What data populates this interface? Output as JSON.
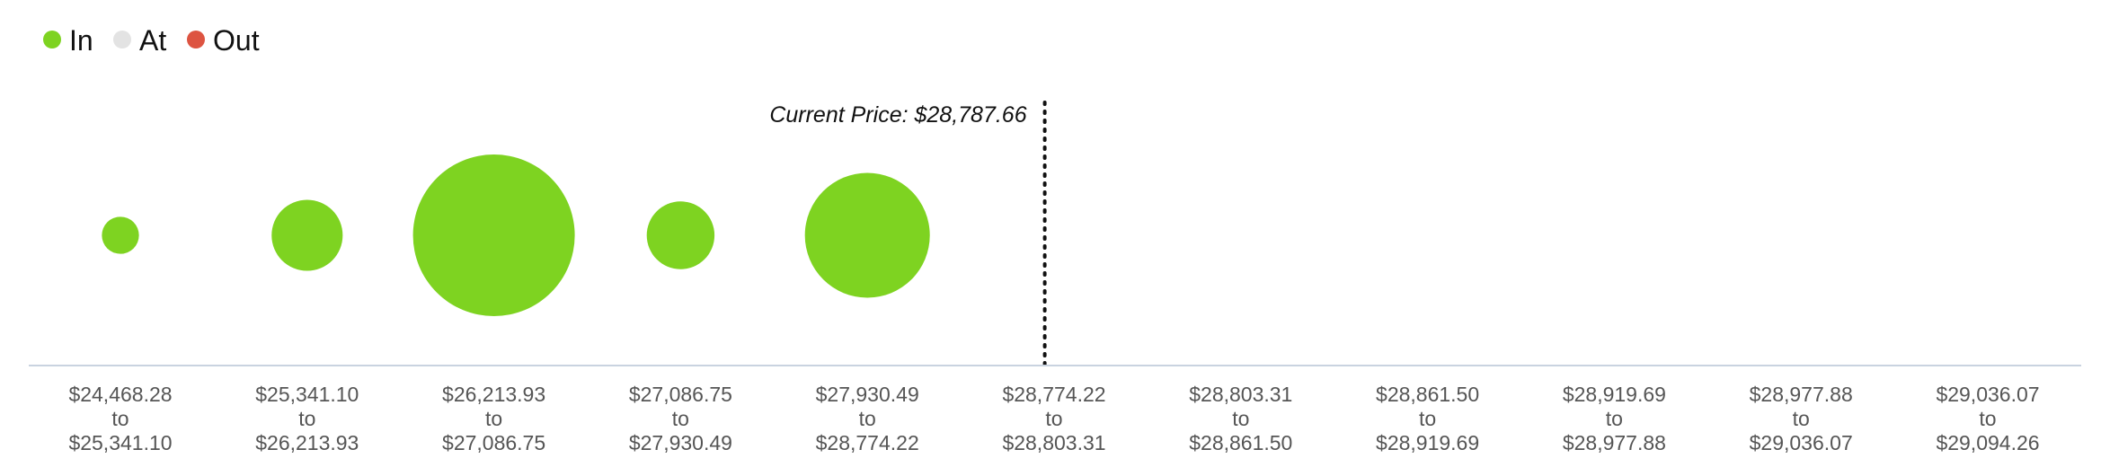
{
  "chart_data": {
    "type": "bubble",
    "legend": [
      {
        "label": "In",
        "color": "#7ED321"
      },
      {
        "label": "At",
        "color": "#E3E3E3"
      },
      {
        "label": "Out",
        "color": "#DD5441"
      }
    ],
    "current_price_label": "Current Price: $28,787.66",
    "current_price": 28787.66,
    "categories": [
      {
        "from": "$24,468.28",
        "connector": "to",
        "to": "$25,341.10"
      },
      {
        "from": "$25,341.10",
        "connector": "to",
        "to": "$26,213.93"
      },
      {
        "from": "$26,213.93",
        "connector": "to",
        "to": "$27,086.75"
      },
      {
        "from": "$27,086.75",
        "connector": "to",
        "to": "$27,930.49"
      },
      {
        "from": "$27,930.49",
        "connector": "to",
        "to": "$28,774.22"
      },
      {
        "from": "$28,774.22",
        "connector": "to",
        "to": "$28,803.31"
      },
      {
        "from": "$28,803.31",
        "connector": "to",
        "to": "$28,861.50"
      },
      {
        "from": "$28,861.50",
        "connector": "to",
        "to": "$28,919.69"
      },
      {
        "from": "$28,919.69",
        "connector": "to",
        "to": "$28,977.88"
      },
      {
        "from": "$28,977.88",
        "connector": "to",
        "to": "$29,036.07"
      },
      {
        "from": "$29,036.07",
        "connector": "to",
        "to": "$29,094.26"
      }
    ],
    "series": [
      {
        "status": "In",
        "color": "#7ED321",
        "values": [
          1.5,
          5.5,
          28.5,
          5.0,
          17.0,
          0,
          0,
          0,
          0,
          0,
          0
        ]
      }
    ],
    "current_price_after_category_index": 5
  }
}
